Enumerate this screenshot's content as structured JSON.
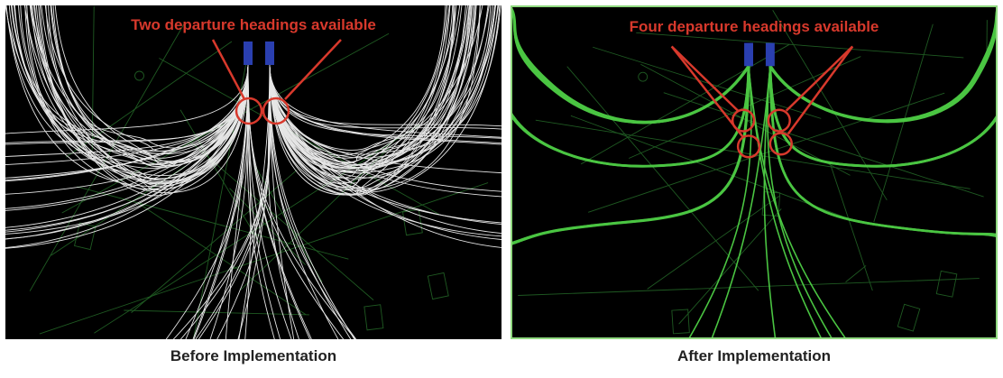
{
  "panels": [
    {
      "id": "before",
      "annotation": "Two departure headings available",
      "caption": "Before Implementation",
      "track_color": "#ffffff",
      "heading_count": 2
    },
    {
      "id": "after",
      "annotation": "Four departure headings available",
      "caption": "After Implementation",
      "track_color": "#4fd046",
      "heading_count": 4
    }
  ],
  "colors": {
    "annotation": "#d8392c",
    "runway": "#2a3fb0",
    "map_lines": "#1f5a22",
    "background": "#000000"
  }
}
